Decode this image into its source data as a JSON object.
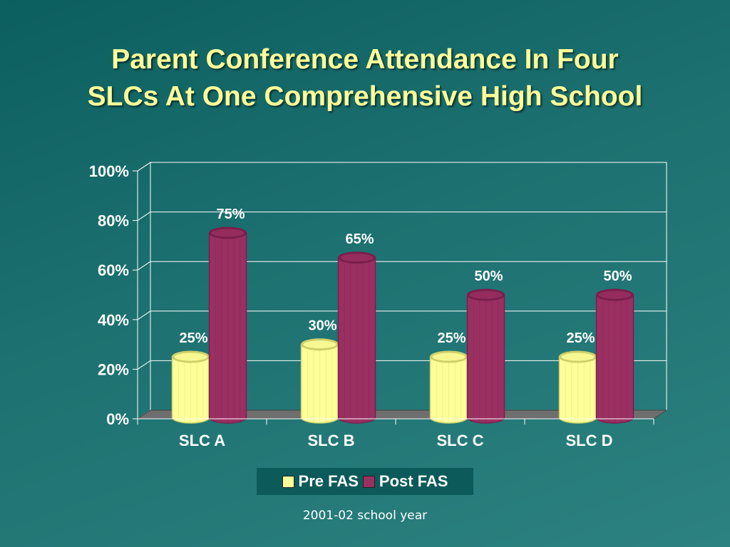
{
  "slide": {
    "title_line1": "Parent Conference Attendance In Four",
    "title_line2": "SLCs At One Comprehensive High School",
    "footnote": "2001-02 school year"
  },
  "chart_data": {
    "type": "bar",
    "categories": [
      "SLC A",
      "SLC B",
      "SLC C",
      "SLC D"
    ],
    "series": [
      {
        "name": "Pre FAS",
        "values": [
          25,
          30,
          25,
          25
        ],
        "labels": [
          "25%",
          "30%",
          "25%",
          "25%"
        ],
        "color": "#ffff99",
        "side_color": "#cfcf6a"
      },
      {
        "name": "Post FAS",
        "values": [
          75,
          65,
          50,
          50
        ],
        "labels": [
          "75%",
          "65%",
          "50%",
          "50%"
        ],
        "color": "#9a2f62",
        "side_color": "#7a1f4c"
      }
    ],
    "ylim": [
      0,
      100
    ],
    "yticks": [
      0,
      20,
      40,
      60,
      80,
      100
    ],
    "ytick_labels": [
      "0%",
      "20%",
      "40%",
      "60%",
      "80%",
      "100%"
    ],
    "grid": true,
    "legend_position": "bottom",
    "style": "3d-cylinder"
  }
}
